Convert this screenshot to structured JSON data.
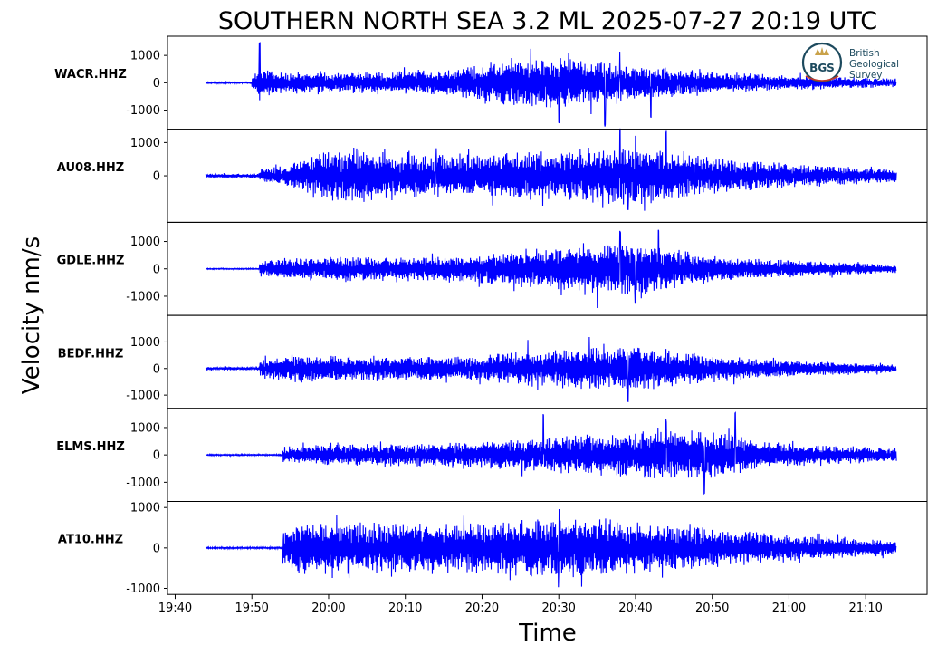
{
  "chart_data": {
    "type": "line",
    "title": "SOUTHERN NORTH SEA 3.2 ML   2025-07-27 20:19 UTC",
    "xlabel": "Time",
    "ylabel": "Velocity nm/s",
    "line_color": "#0000ff",
    "grid": false,
    "x_ticks": [
      "19:40",
      "19:50",
      "20:00",
      "20:10",
      "20:20",
      "20:30",
      "20:40",
      "20:50",
      "21:00",
      "21:10"
    ],
    "x_range": [
      "19:39",
      "21:18"
    ],
    "trace_start": "19:44",
    "trace_end": "21:14",
    "logo": {
      "name": "bgs-logo",
      "mark": "BGS",
      "lines": [
        "British",
        "Geological",
        "Survey"
      ]
    },
    "panels": [
      {
        "station": "WACR.HHZ",
        "ylim": [
          -1700,
          1700
        ],
        "yticks": [
          1000,
          0,
          -1000
        ],
        "onset": "19:50",
        "noise_level": 25,
        "coda_level": 160,
        "max": 1600,
        "min": -1650,
        "envelope": [
          [
            "19:50",
            260
          ],
          [
            "19:51",
            600
          ],
          [
            "19:54",
            420
          ],
          [
            "20:00",
            380
          ],
          [
            "20:10",
            430
          ],
          [
            "20:15",
            500
          ],
          [
            "20:20",
            700
          ],
          [
            "20:25",
            950
          ],
          [
            "20:30",
            1000
          ],
          [
            "20:35",
            850
          ],
          [
            "20:40",
            650
          ],
          [
            "20:45",
            500
          ],
          [
            "20:50",
            420
          ],
          [
            "21:00",
            280
          ],
          [
            "21:14",
            160
          ]
        ],
        "peaks": [
          [
            "19:51",
            1550
          ],
          [
            "20:30",
            -1500
          ],
          [
            "20:36",
            -1650
          ],
          [
            "20:38",
            1200
          ],
          [
            "20:42",
            -1300
          ]
        ]
      },
      {
        "station": "AU08.HHZ",
        "ylim": [
          -1400,
          1400
        ],
        "yticks": [
          1000,
          0
        ],
        "onset": "19:51",
        "noise_level": 60,
        "coda_level": 190,
        "max": 1500,
        "min": -1100,
        "envelope": [
          [
            "19:51",
            200
          ],
          [
            "19:55",
            350
          ],
          [
            "19:59",
            700
          ],
          [
            "20:03",
            900
          ],
          [
            "20:08",
            700
          ],
          [
            "20:15",
            650
          ],
          [
            "20:20",
            700
          ],
          [
            "20:25",
            750
          ],
          [
            "20:30",
            750
          ],
          [
            "20:35",
            900
          ],
          [
            "20:40",
            900
          ],
          [
            "20:45",
            750
          ],
          [
            "20:50",
            550
          ],
          [
            "21:00",
            380
          ],
          [
            "21:14",
            200
          ]
        ],
        "peaks": [
          [
            "20:04",
            800
          ],
          [
            "20:14",
            900
          ],
          [
            "20:35",
            1200
          ],
          [
            "20:38",
            1450
          ],
          [
            "20:44",
            1400
          ],
          [
            "20:39",
            -1100
          ]
        ]
      },
      {
        "station": "GDLE.HHZ",
        "ylim": [
          -1700,
          1700
        ],
        "yticks": [
          1000,
          0,
          -1000
        ],
        "onset": "19:51",
        "noise_level": 20,
        "coda_level": 150,
        "max": 1450,
        "min": -1600,
        "envelope": [
          [
            "19:51",
            300
          ],
          [
            "19:55",
            400
          ],
          [
            "20:00",
            450
          ],
          [
            "20:10",
            450
          ],
          [
            "20:18",
            500
          ],
          [
            "20:25",
            700
          ],
          [
            "20:30",
            800
          ],
          [
            "20:35",
            900
          ],
          [
            "20:40",
            1000
          ],
          [
            "20:45",
            750
          ],
          [
            "20:50",
            500
          ],
          [
            "21:00",
            330
          ],
          [
            "21:14",
            150
          ]
        ],
        "peaks": [
          [
            "20:35",
            -1500
          ],
          [
            "20:38",
            1400
          ],
          [
            "20:43",
            1450
          ],
          [
            "20:40",
            -1300
          ]
        ]
      },
      {
        "station": "BEDF.HHZ",
        "ylim": [
          -1500,
          2000
        ],
        "yticks": [
          1000,
          0,
          -1000
        ],
        "onset": "19:51",
        "noise_level": 50,
        "coda_level": 150,
        "max": 1800,
        "min": -1300,
        "envelope": [
          [
            "19:51",
            400
          ],
          [
            "19:55",
            550
          ],
          [
            "20:00",
            500
          ],
          [
            "20:10",
            480
          ],
          [
            "20:20",
            500
          ],
          [
            "20:25",
            650
          ],
          [
            "20:30",
            750
          ],
          [
            "20:35",
            800
          ],
          [
            "20:40",
            900
          ],
          [
            "20:45",
            700
          ],
          [
            "20:50",
            500
          ],
          [
            "21:00",
            330
          ],
          [
            "21:14",
            150
          ]
        ],
        "peaks": [
          [
            "20:39",
            1800
          ],
          [
            "20:39",
            -1300
          ],
          [
            "20:26",
            1150
          ],
          [
            "20:34",
            1200
          ]
        ]
      },
      {
        "station": "ELMS.HHZ",
        "ylim": [
          -1700,
          1700
        ],
        "yticks": [
          1000,
          0,
          -1000
        ],
        "onset": "19:54",
        "noise_level": 25,
        "coda_level": 240,
        "max": 1550,
        "min": -1550,
        "envelope": [
          [
            "19:54",
            300
          ],
          [
            "20:00",
            400
          ],
          [
            "20:10",
            420
          ],
          [
            "20:20",
            500
          ],
          [
            "20:30",
            700
          ],
          [
            "20:40",
            850
          ],
          [
            "20:45",
            950
          ],
          [
            "20:50",
            900
          ],
          [
            "20:55",
            600
          ],
          [
            "21:00",
            420
          ],
          [
            "21:14",
            250
          ]
        ],
        "peaks": [
          [
            "20:28",
            1500
          ],
          [
            "20:44",
            1300
          ],
          [
            "20:49",
            -1450
          ],
          [
            "20:53",
            1550
          ]
        ]
      },
      {
        "station": "AT10.HHZ",
        "ylim": [
          -1150,
          1150
        ],
        "yticks": [
          1000,
          0,
          -1000
        ],
        "onset": "19:54",
        "noise_level": 20,
        "coda_level": 180,
        "max": 1000,
        "min": -1050,
        "envelope": [
          [
            "19:54",
            500
          ],
          [
            "19:56",
            700
          ],
          [
            "20:00",
            650
          ],
          [
            "20:10",
            650
          ],
          [
            "20:20",
            650
          ],
          [
            "20:28",
            780
          ],
          [
            "20:32",
            800
          ],
          [
            "20:40",
            650
          ],
          [
            "20:50",
            500
          ],
          [
            "21:00",
            330
          ],
          [
            "21:14",
            180
          ]
        ],
        "peaks": [
          [
            "20:30",
            1000
          ],
          [
            "20:30",
            -1050
          ],
          [
            "20:33",
            -1000
          ],
          [
            "20:07",
            800
          ]
        ]
      }
    ]
  }
}
